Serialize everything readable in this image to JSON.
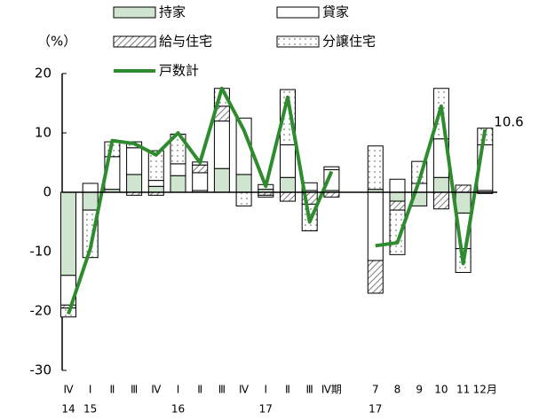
{
  "chart_data": {
    "type": "bar",
    "unit_label": "（%）",
    "categories": [
      "Ⅳ",
      "Ⅰ",
      "Ⅱ",
      "Ⅲ",
      "Ⅳ",
      "Ⅰ",
      "Ⅱ",
      "Ⅲ",
      "Ⅳ",
      "Ⅰ",
      "Ⅱ",
      "Ⅲ",
      "Ⅳ期",
      null,
      "7",
      "8",
      "9",
      "10",
      "11",
      "12月"
    ],
    "category_years": [
      "14",
      "15",
      null,
      null,
      null,
      "16",
      null,
      null,
      null,
      "17",
      null,
      null,
      null,
      null,
      "17",
      null,
      null,
      null,
      null,
      null
    ],
    "series": [
      {
        "name": "持家",
        "color": "#cfe5cf",
        "pattern": "solid",
        "values": [
          -14,
          -3,
          0.5,
          3,
          1,
          2.8,
          0.3,
          4,
          3,
          0.5,
          2.5,
          0.3,
          0.3,
          null,
          0.5,
          -1.5,
          -2.3,
          2.5,
          -3.5,
          0.3
        ]
      },
      {
        "name": "貸家",
        "color": "#ffffff",
        "pattern": "solid",
        "values": [
          -5,
          1.5,
          5.5,
          4.5,
          1,
          2,
          3,
          8,
          9.5,
          0.8,
          5.5,
          1.3,
          3.5,
          null,
          -11.5,
          2.2,
          1.5,
          6.5,
          -6,
          7.7
        ]
      },
      {
        "name": "給与住宅",
        "color": "#ffffff",
        "pattern": "hatch",
        "values": [
          -0.5,
          0,
          0,
          -0.5,
          -0.5,
          0,
          1.3,
          2.5,
          0,
          -0.5,
          -1.5,
          -2,
          -0.8,
          null,
          -5.5,
          -1.5,
          0,
          -2.8,
          1.2,
          -0.2
        ]
      },
      {
        "name": "分譲住宅",
        "color": "#ffffff",
        "pattern": "dots",
        "values": [
          -1.5,
          -8,
          2.5,
          1,
          5,
          5,
          0.5,
          3,
          -2.3,
          -0.3,
          9.3,
          -4.5,
          0.5,
          null,
          7.3,
          -7.5,
          3.7,
          8.5,
          -4,
          2.8
        ]
      },
      {
        "name": "戸数計",
        "type": "line",
        "color": "#2e8b2e",
        "values": [
          -20.5,
          -9.5,
          8.7,
          8.2,
          6.3,
          10,
          5,
          17.5,
          10.5,
          1,
          16,
          -5,
          3.5,
          null,
          -9,
          -8.5,
          2,
          14.5,
          -12,
          10.6
        ],
        "value_labels": [
          null,
          null,
          null,
          null,
          null,
          null,
          null,
          null,
          null,
          null,
          null,
          null,
          null,
          null,
          null,
          null,
          null,
          null,
          null,
          "10.6"
        ]
      }
    ],
    "ylim": [
      -30,
      20
    ],
    "yticks": [
      20,
      10,
      0,
      -10,
      -20,
      -30
    ]
  }
}
